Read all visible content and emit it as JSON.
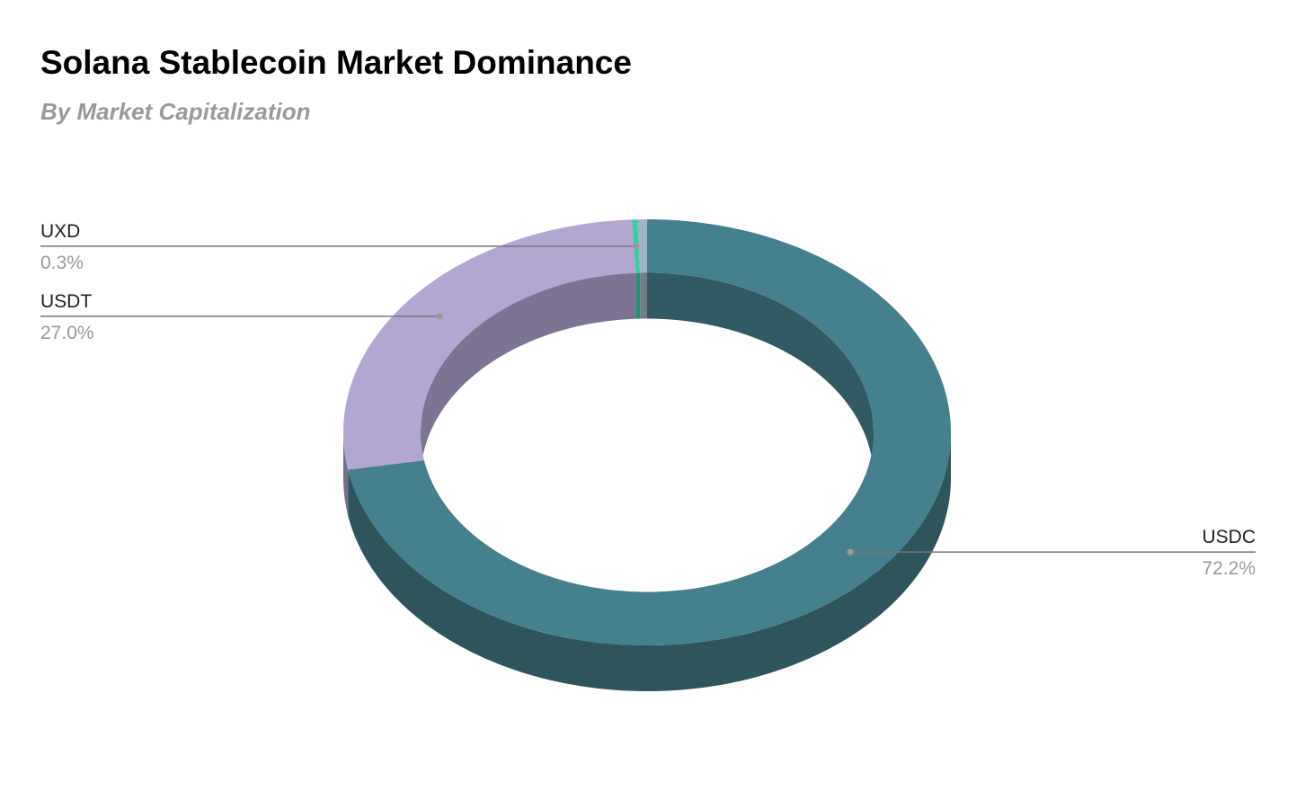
{
  "chart_data": {
    "type": "donut3d",
    "title": "Solana Stablecoin Market Dominance",
    "subtitle": "By Market Capitalization",
    "categories": [
      "USDC",
      "USDT",
      "UXD",
      null
    ],
    "values": [
      72.2,
      27.0,
      0.3,
      0.5
    ],
    "value_labels": [
      "72.2%",
      "27.0%",
      "0.3%",
      null
    ],
    "colors": [
      "#46808c",
      "#b3a6d3",
      "#3ec9a7",
      "#9fb4c2"
    ]
  }
}
